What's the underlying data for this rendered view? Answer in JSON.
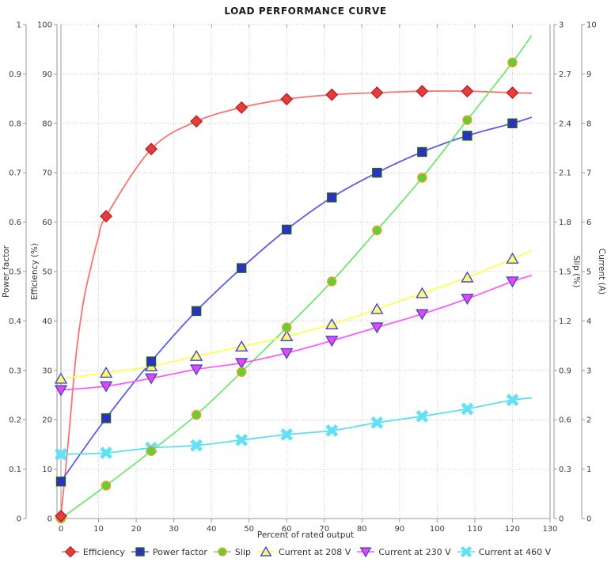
{
  "title": "LOAD PERFORMANCE CURVE",
  "colors": {
    "background": "#ffffff",
    "grid": "#c9c9c9",
    "axis_line": "#999999",
    "tick_text": "#3c3c3c",
    "title_text": "#1a1a1a",
    "axis_title_text": "#333333"
  },
  "chart_data": {
    "type": "line",
    "title": "LOAD PERFORMANCE CURVE",
    "grid": true,
    "legend_position": "bottom",
    "x": [
      0,
      12,
      24,
      36,
      48,
      60,
      72,
      84,
      96,
      108,
      120
    ],
    "x_axis": {
      "label": "Percent of rated output",
      "min": 0,
      "max": 130,
      "step": 10
    },
    "axes": {
      "power_factor": {
        "label": "Power factor",
        "min": 0,
        "max": 1,
        "step": 0.1,
        "side": "left-outer"
      },
      "efficiency": {
        "label": "Efficiency (%)",
        "min": 0,
        "max": 100,
        "step": 10,
        "side": "left-inner"
      },
      "slip": {
        "label": "Slip (%)",
        "min": 0,
        "max": 3,
        "step": 0.3,
        "side": "right-inner"
      },
      "current": {
        "label": "Current (A)",
        "min": 0,
        "max": 10,
        "step": 1,
        "side": "right-outer"
      }
    },
    "series": [
      {
        "name": "Efficiency",
        "axis": "efficiency",
        "marker": "diamond",
        "line_color": "#ff7070",
        "marker_fill": "#e83c3c",
        "marker_stroke": "#b42626",
        "values": [
          0.5,
          61.2,
          74.8,
          80.4,
          83.2,
          84.9,
          85.8,
          86.2,
          86.5,
          86.5,
          86.2
        ],
        "fit_points": [
          [
            0,
            0.5
          ],
          [
            2,
            16
          ],
          [
            4,
            33
          ],
          [
            6,
            44
          ],
          [
            8,
            51
          ],
          [
            10,
            57
          ],
          [
            12,
            61.2
          ],
          [
            24,
            74.8
          ],
          [
            36,
            80.4
          ],
          [
            48,
            83.2
          ],
          [
            60,
            84.9
          ],
          [
            72,
            85.8
          ],
          [
            84,
            86.2
          ],
          [
            96,
            86.5
          ],
          [
            108,
            86.5
          ],
          [
            120,
            86.2
          ],
          [
            125,
            86.1
          ]
        ]
      },
      {
        "name": "Power factor",
        "axis": "power_factor",
        "marker": "square",
        "line_color": "#5c5ceb",
        "marker_fill": "#2e2ec8",
        "marker_stroke": "#1e641e",
        "values": [
          0.075,
          0.203,
          0.318,
          0.42,
          0.507,
          0.585,
          0.65,
          0.7,
          0.742,
          0.775,
          0.8
        ],
        "fit_points": [
          [
            0,
            0.075
          ],
          [
            12,
            0.203
          ],
          [
            24,
            0.318
          ],
          [
            36,
            0.42
          ],
          [
            48,
            0.507
          ],
          [
            60,
            0.585
          ],
          [
            72,
            0.65
          ],
          [
            84,
            0.7
          ],
          [
            96,
            0.742
          ],
          [
            108,
            0.775
          ],
          [
            120,
            0.8
          ],
          [
            125,
            0.812
          ]
        ]
      },
      {
        "name": "Slip",
        "axis": "slip",
        "marker": "circle",
        "line_color": "#6ee86e",
        "marker_fill": "#5ad23c",
        "marker_stroke": "#e6a028",
        "values": [
          0,
          0.2,
          0.41,
          0.63,
          0.89,
          1.16,
          1.44,
          1.75,
          2.07,
          2.42,
          2.77
        ],
        "fit_points": [
          [
            0,
            0
          ],
          [
            12,
            0.2
          ],
          [
            24,
            0.41
          ],
          [
            36,
            0.63
          ],
          [
            48,
            0.89
          ],
          [
            60,
            1.16
          ],
          [
            72,
            1.44
          ],
          [
            84,
            1.75
          ],
          [
            96,
            2.07
          ],
          [
            108,
            2.42
          ],
          [
            120,
            2.77
          ],
          [
            125,
            2.93
          ]
        ]
      },
      {
        "name": "Current at 208 V",
        "axis": "current",
        "marker": "triangle-up",
        "line_color": "#ffff50",
        "marker_fill": "#fafa6e",
        "marker_stroke": "#4646d2",
        "values": [
          2.83,
          2.95,
          3.08,
          3.29,
          3.48,
          3.69,
          3.93,
          4.24,
          4.56,
          4.88,
          5.26
        ],
        "fit_points": [
          [
            0,
            2.83
          ],
          [
            12,
            2.95
          ],
          [
            24,
            3.08
          ],
          [
            36,
            3.29
          ],
          [
            48,
            3.48
          ],
          [
            60,
            3.69
          ],
          [
            72,
            3.93
          ],
          [
            84,
            4.24
          ],
          [
            96,
            4.56
          ],
          [
            108,
            4.88
          ],
          [
            120,
            5.26
          ],
          [
            125,
            5.42
          ]
        ]
      },
      {
        "name": "Current at 230 V",
        "axis": "current",
        "marker": "triangle-down",
        "line_color": "#ff5aff",
        "marker_fill": "#eb46eb",
        "marker_stroke": "#4646d2",
        "values": [
          2.6,
          2.68,
          2.84,
          3.02,
          3.15,
          3.35,
          3.6,
          3.87,
          4.14,
          4.45,
          4.8
        ],
        "fit_points": [
          [
            0,
            2.6
          ],
          [
            12,
            2.68
          ],
          [
            24,
            2.84
          ],
          [
            36,
            3.02
          ],
          [
            48,
            3.15
          ],
          [
            60,
            3.35
          ],
          [
            72,
            3.6
          ],
          [
            84,
            3.87
          ],
          [
            96,
            4.14
          ],
          [
            108,
            4.45
          ],
          [
            120,
            4.8
          ],
          [
            125,
            4.92
          ]
        ]
      },
      {
        "name": "Current at 460 V",
        "axis": "current",
        "marker": "x-cross",
        "line_color": "#5ae1eb",
        "marker_fill": "#64e1f5",
        "marker_stroke": "#64e1f5",
        "values": [
          1.3,
          1.33,
          1.43,
          1.48,
          1.59,
          1.7,
          1.78,
          1.94,
          2.07,
          2.22,
          2.4
        ],
        "fit_points": [
          [
            0,
            1.3
          ],
          [
            12,
            1.33
          ],
          [
            24,
            1.43
          ],
          [
            36,
            1.48
          ],
          [
            48,
            1.59
          ],
          [
            60,
            1.7
          ],
          [
            72,
            1.78
          ],
          [
            84,
            1.94
          ],
          [
            96,
            2.07
          ],
          [
            108,
            2.22
          ],
          [
            120,
            2.4
          ],
          [
            125,
            2.44
          ]
        ]
      }
    ]
  }
}
